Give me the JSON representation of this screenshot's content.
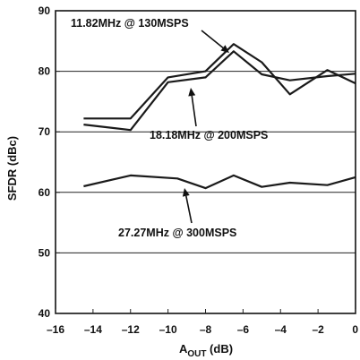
{
  "chart_data": {
    "type": "line",
    "xlabel_main": "A",
    "xlabel_sub": "OUT",
    "xlabel_unit": " (dB)",
    "ylabel": "SFDR (dBc)",
    "xlim": [
      -16,
      0
    ],
    "ylim": [
      40,
      90
    ],
    "x_ticks": [
      -16,
      -14,
      -12,
      -10,
      -8,
      -6,
      -4,
      -2,
      0
    ],
    "y_ticks": [
      40,
      50,
      60,
      70,
      80,
      90
    ],
    "x_tick_labels": [
      "–16",
      "–14",
      "–12",
      "–10",
      "–8",
      "–6",
      "–4",
      "–2",
      "0"
    ],
    "y_tick_labels": [
      "40",
      "50",
      "60",
      "70",
      "80",
      "90"
    ],
    "grid": "horizontal",
    "series": [
      {
        "x": [
          -14.5,
          -12,
          -10,
          -8,
          -6.5,
          -5,
          -3.5,
          -1.5,
          0
        ],
        "y": [
          72.2,
          72.2,
          79.0,
          80.0,
          84.5,
          81.5,
          76.2,
          80.2,
          78.0
        ]
      },
      {
        "x": [
          -14.5,
          -12,
          -10,
          -8,
          -6.5,
          -5,
          -3.5,
          -1.5,
          0
        ],
        "y": [
          71.2,
          70.3,
          78.2,
          79.0,
          83.3,
          79.5,
          78.5,
          79.2,
          79.6
        ]
      },
      {
        "x": [
          -14.5,
          -12,
          -9.5,
          -8,
          -6.5,
          -5,
          -3.5,
          -1.5,
          0
        ],
        "y": [
          61.0,
          62.8,
          62.3,
          60.7,
          62.8,
          60.9,
          61.6,
          61.2,
          62.5
        ]
      }
    ],
    "annotations": [
      {
        "text": "11.82MHz @ 130MSPS"
      },
      {
        "text": "18.18MHz @ 200MSPS"
      },
      {
        "text": "27.27MHz @ 300MSPS"
      }
    ]
  }
}
